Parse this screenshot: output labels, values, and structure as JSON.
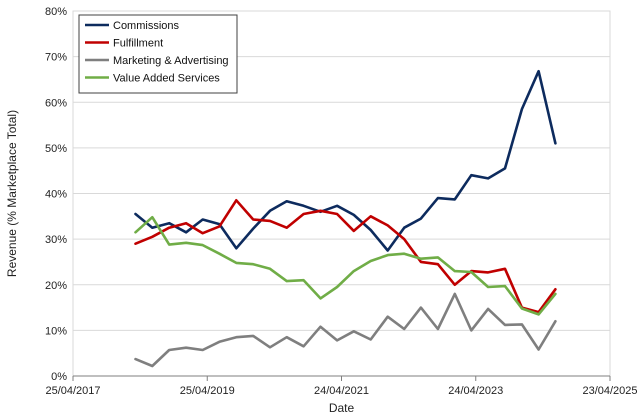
{
  "chart_data": {
    "type": "line",
    "title": "",
    "xlabel": "Date",
    "ylabel": "Revenue (% Marketplace Total)",
    "x_type": "date",
    "xlim": [
      "2017-04-25",
      "2025-04-23"
    ],
    "x_ticks": [
      "2017-04-25",
      "2019-04-25",
      "2021-04-24",
      "2023-04-24",
      "2025-04-23"
    ],
    "x_tick_labels": [
      "25/04/2017",
      "25/04/2019",
      "24/04/2021",
      "24/04/2023",
      "23/04/2025"
    ],
    "ylim": [
      0,
      80
    ],
    "y_ticks": [
      0,
      10,
      20,
      30,
      40,
      50,
      60,
      70,
      80
    ],
    "y_tick_labels": [
      "0%",
      "10%",
      "20%",
      "30%",
      "40%",
      "50%",
      "60%",
      "70%",
      "80%"
    ],
    "grid": "horizontal",
    "legend_position": "top-left",
    "x": [
      "2018-03-31",
      "2018-06-30",
      "2018-09-30",
      "2018-12-31",
      "2019-03-31",
      "2019-06-30",
      "2019-09-30",
      "2019-12-31",
      "2020-03-31",
      "2020-06-30",
      "2020-09-30",
      "2020-12-31",
      "2021-03-31",
      "2021-06-30",
      "2021-09-30",
      "2021-12-31",
      "2022-03-31",
      "2022-06-30",
      "2022-09-30",
      "2022-12-31",
      "2023-03-31",
      "2023-06-30",
      "2023-09-30",
      "2023-12-31",
      "2024-03-31",
      "2024-06-30"
    ],
    "series": [
      {
        "name": "Commissions",
        "color": "#0d2b5e",
        "values": [
          35.5,
          32.5,
          33.5,
          31.5,
          34.3,
          33.3,
          28.0,
          32.3,
          36.2,
          38.3,
          37.3,
          36.0,
          37.3,
          35.3,
          32.0,
          27.5,
          32.5,
          34.5,
          39.0,
          38.7,
          44.0,
          43.3,
          45.5,
          58.5,
          66.8,
          51.0
        ]
      },
      {
        "name": "Fulfillment",
        "color": "#c00000",
        "values": [
          29.0,
          30.5,
          32.5,
          33.5,
          31.3,
          32.8,
          38.5,
          34.3,
          34.0,
          32.5,
          35.5,
          36.2,
          35.5,
          31.8,
          35.0,
          33.0,
          30.0,
          25.0,
          24.5,
          20.0,
          23.0,
          22.7,
          23.5,
          15.0,
          14.0,
          19.0
        ]
      },
      {
        "name": "Marketing & Advertising",
        "color": "#7f7f7f",
        "values": [
          3.7,
          2.2,
          5.7,
          6.2,
          5.7,
          7.5,
          8.5,
          8.8,
          6.3,
          8.5,
          6.5,
          10.8,
          7.8,
          9.8,
          8.0,
          13.0,
          10.3,
          15.0,
          10.3,
          18.0,
          10.0,
          14.7,
          11.2,
          11.3,
          5.8,
          12.0
        ]
      },
      {
        "name": "Value Added Services",
        "color": "#70ad47",
        "values": [
          31.5,
          34.8,
          28.8,
          29.2,
          28.7,
          26.8,
          24.8,
          24.5,
          23.5,
          20.8,
          21.0,
          17.0,
          19.5,
          23.0,
          25.2,
          26.5,
          26.8,
          25.7,
          26.0,
          23.0,
          22.8,
          19.5,
          19.7,
          14.8,
          13.5,
          18.0
        ]
      }
    ]
  }
}
